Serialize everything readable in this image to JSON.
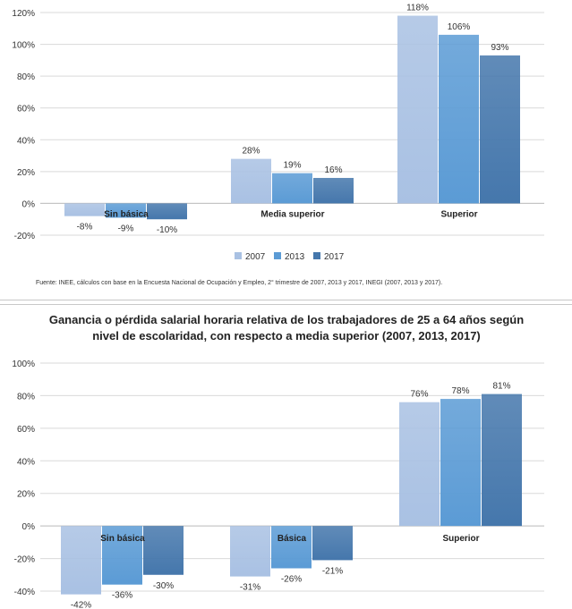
{
  "colors": {
    "2007": "#a9c1e3",
    "2013": "#5b9bd5",
    "2017": "#4577ac",
    "grid": "#d9d9d9",
    "axis": "#bfbfbf"
  },
  "charts": [
    {
      "source": "Fuente: INEE, cálculos con base en la Encuesta Nacional de Ocupación y Empleo, 2° trimestre de 2007, 2013 y 2017, INEGI (2007, 2013 y 2017).",
      "chart_data": {
        "type": "bar",
        "title": "",
        "categories": [
          "Sin básica",
          "Media superior",
          "Superior"
        ],
        "series": [
          {
            "name": "2007",
            "values": [
              -8,
              28,
              118
            ],
            "labels": [
              "-8%",
              "28%",
              "118%"
            ]
          },
          {
            "name": "2013",
            "values": [
              -9,
              19,
              106
            ],
            "labels": [
              "-9%",
              "19%",
              "106%"
            ]
          },
          {
            "name": "2017",
            "values": [
              -10,
              16,
              93
            ],
            "labels": [
              "-10%",
              "16%",
              "93%"
            ]
          }
        ],
        "ylim": [
          -20,
          120
        ],
        "yticks": [
          -20,
          0,
          20,
          40,
          60,
          80,
          100,
          120
        ],
        "ytick_labels": [
          "-20%",
          "0%",
          "20%",
          "40%",
          "60%",
          "80%",
          "100%",
          "120%"
        ],
        "grid": true,
        "legend": "bottom"
      }
    },
    {
      "chart_data": {
        "type": "bar",
        "title": "Ganancia o pérdida salarial horaria relativa de los trabajadores de 25 a 64 años según nivel de escolaridad, con respecto a media superior (2007, 2013, 2017)",
        "categories": [
          "Sin básica",
          "Básica",
          "Superior"
        ],
        "series": [
          {
            "name": "2007",
            "values": [
              -42,
              -31,
              76
            ],
            "labels": [
              "-42%",
              "-31%",
              "76%"
            ]
          },
          {
            "name": "2013",
            "values": [
              -36,
              -26,
              78
            ],
            "labels": [
              "-36%",
              "-26%",
              "78%"
            ]
          },
          {
            "name": "2017",
            "values": [
              -30,
              -21,
              81
            ],
            "labels": [
              "-30%",
              "-21%",
              "81%"
            ]
          }
        ],
        "ylim": [
          -40,
          100
        ],
        "yticks": [
          -40,
          -20,
          0,
          20,
          40,
          60,
          80,
          100
        ],
        "ytick_labels": [
          "-40%",
          "-20%",
          "0%",
          "20%",
          "40%",
          "60%",
          "80%",
          "100%"
        ],
        "grid": true,
        "legend": "none"
      }
    }
  ]
}
